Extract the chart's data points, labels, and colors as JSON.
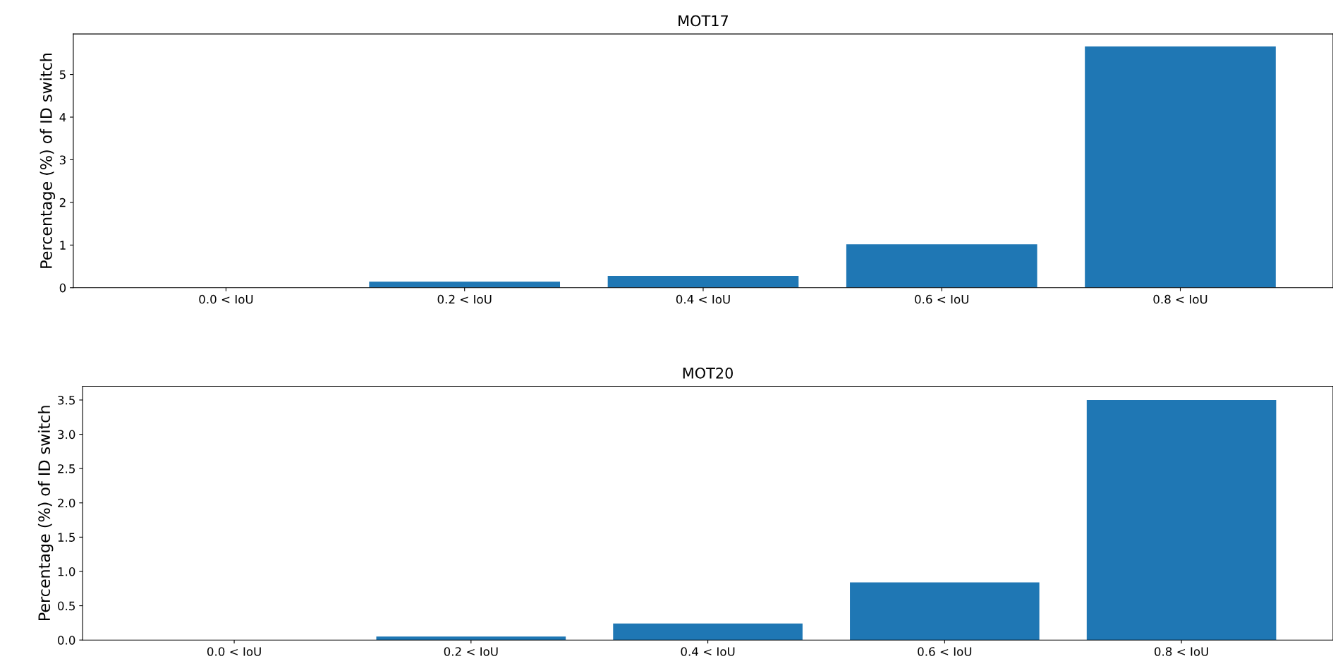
{
  "chart_data": [
    {
      "type": "bar",
      "title": "MOT17",
      "ylabel": "Percentage (%) of ID switch",
      "categories": [
        "0.0 < IoU",
        "0.2 < IoU",
        "0.4 < IoU",
        "0.6 < IoU",
        "0.8 < IoU"
      ],
      "values": [
        0,
        0.14,
        0.28,
        1.02,
        5.66
      ],
      "color": "#1f77b4",
      "ylim": [
        0,
        5.95
      ],
      "yticks": [
        0,
        1,
        2,
        3,
        4,
        5
      ]
    },
    {
      "type": "bar",
      "title": "MOT20",
      "ylabel": "Percentage (%) of ID switch",
      "categories": [
        "0.0 < IoU",
        "0.2 < IoU",
        "0.4 < IoU",
        "0.6 < IoU",
        "0.8 < IoU"
      ],
      "values": [
        0,
        0.05,
        0.24,
        0.84,
        3.5
      ],
      "color": "#1f77b4",
      "ylim": [
        0,
        3.7
      ],
      "yticks": [
        {
          "value": 0,
          "label": "0.0"
        },
        {
          "value": 0.5,
          "label": "0.5"
        },
        {
          "value": 1,
          "label": "1.0"
        },
        {
          "value": 1.5,
          "label": "1.5"
        },
        {
          "value": 2,
          "label": "2.0"
        },
        {
          "value": 2.5,
          "label": "2.5"
        },
        {
          "value": 3,
          "label": "3.0"
        },
        {
          "value": 3.5,
          "label": "3.5"
        }
      ]
    }
  ]
}
